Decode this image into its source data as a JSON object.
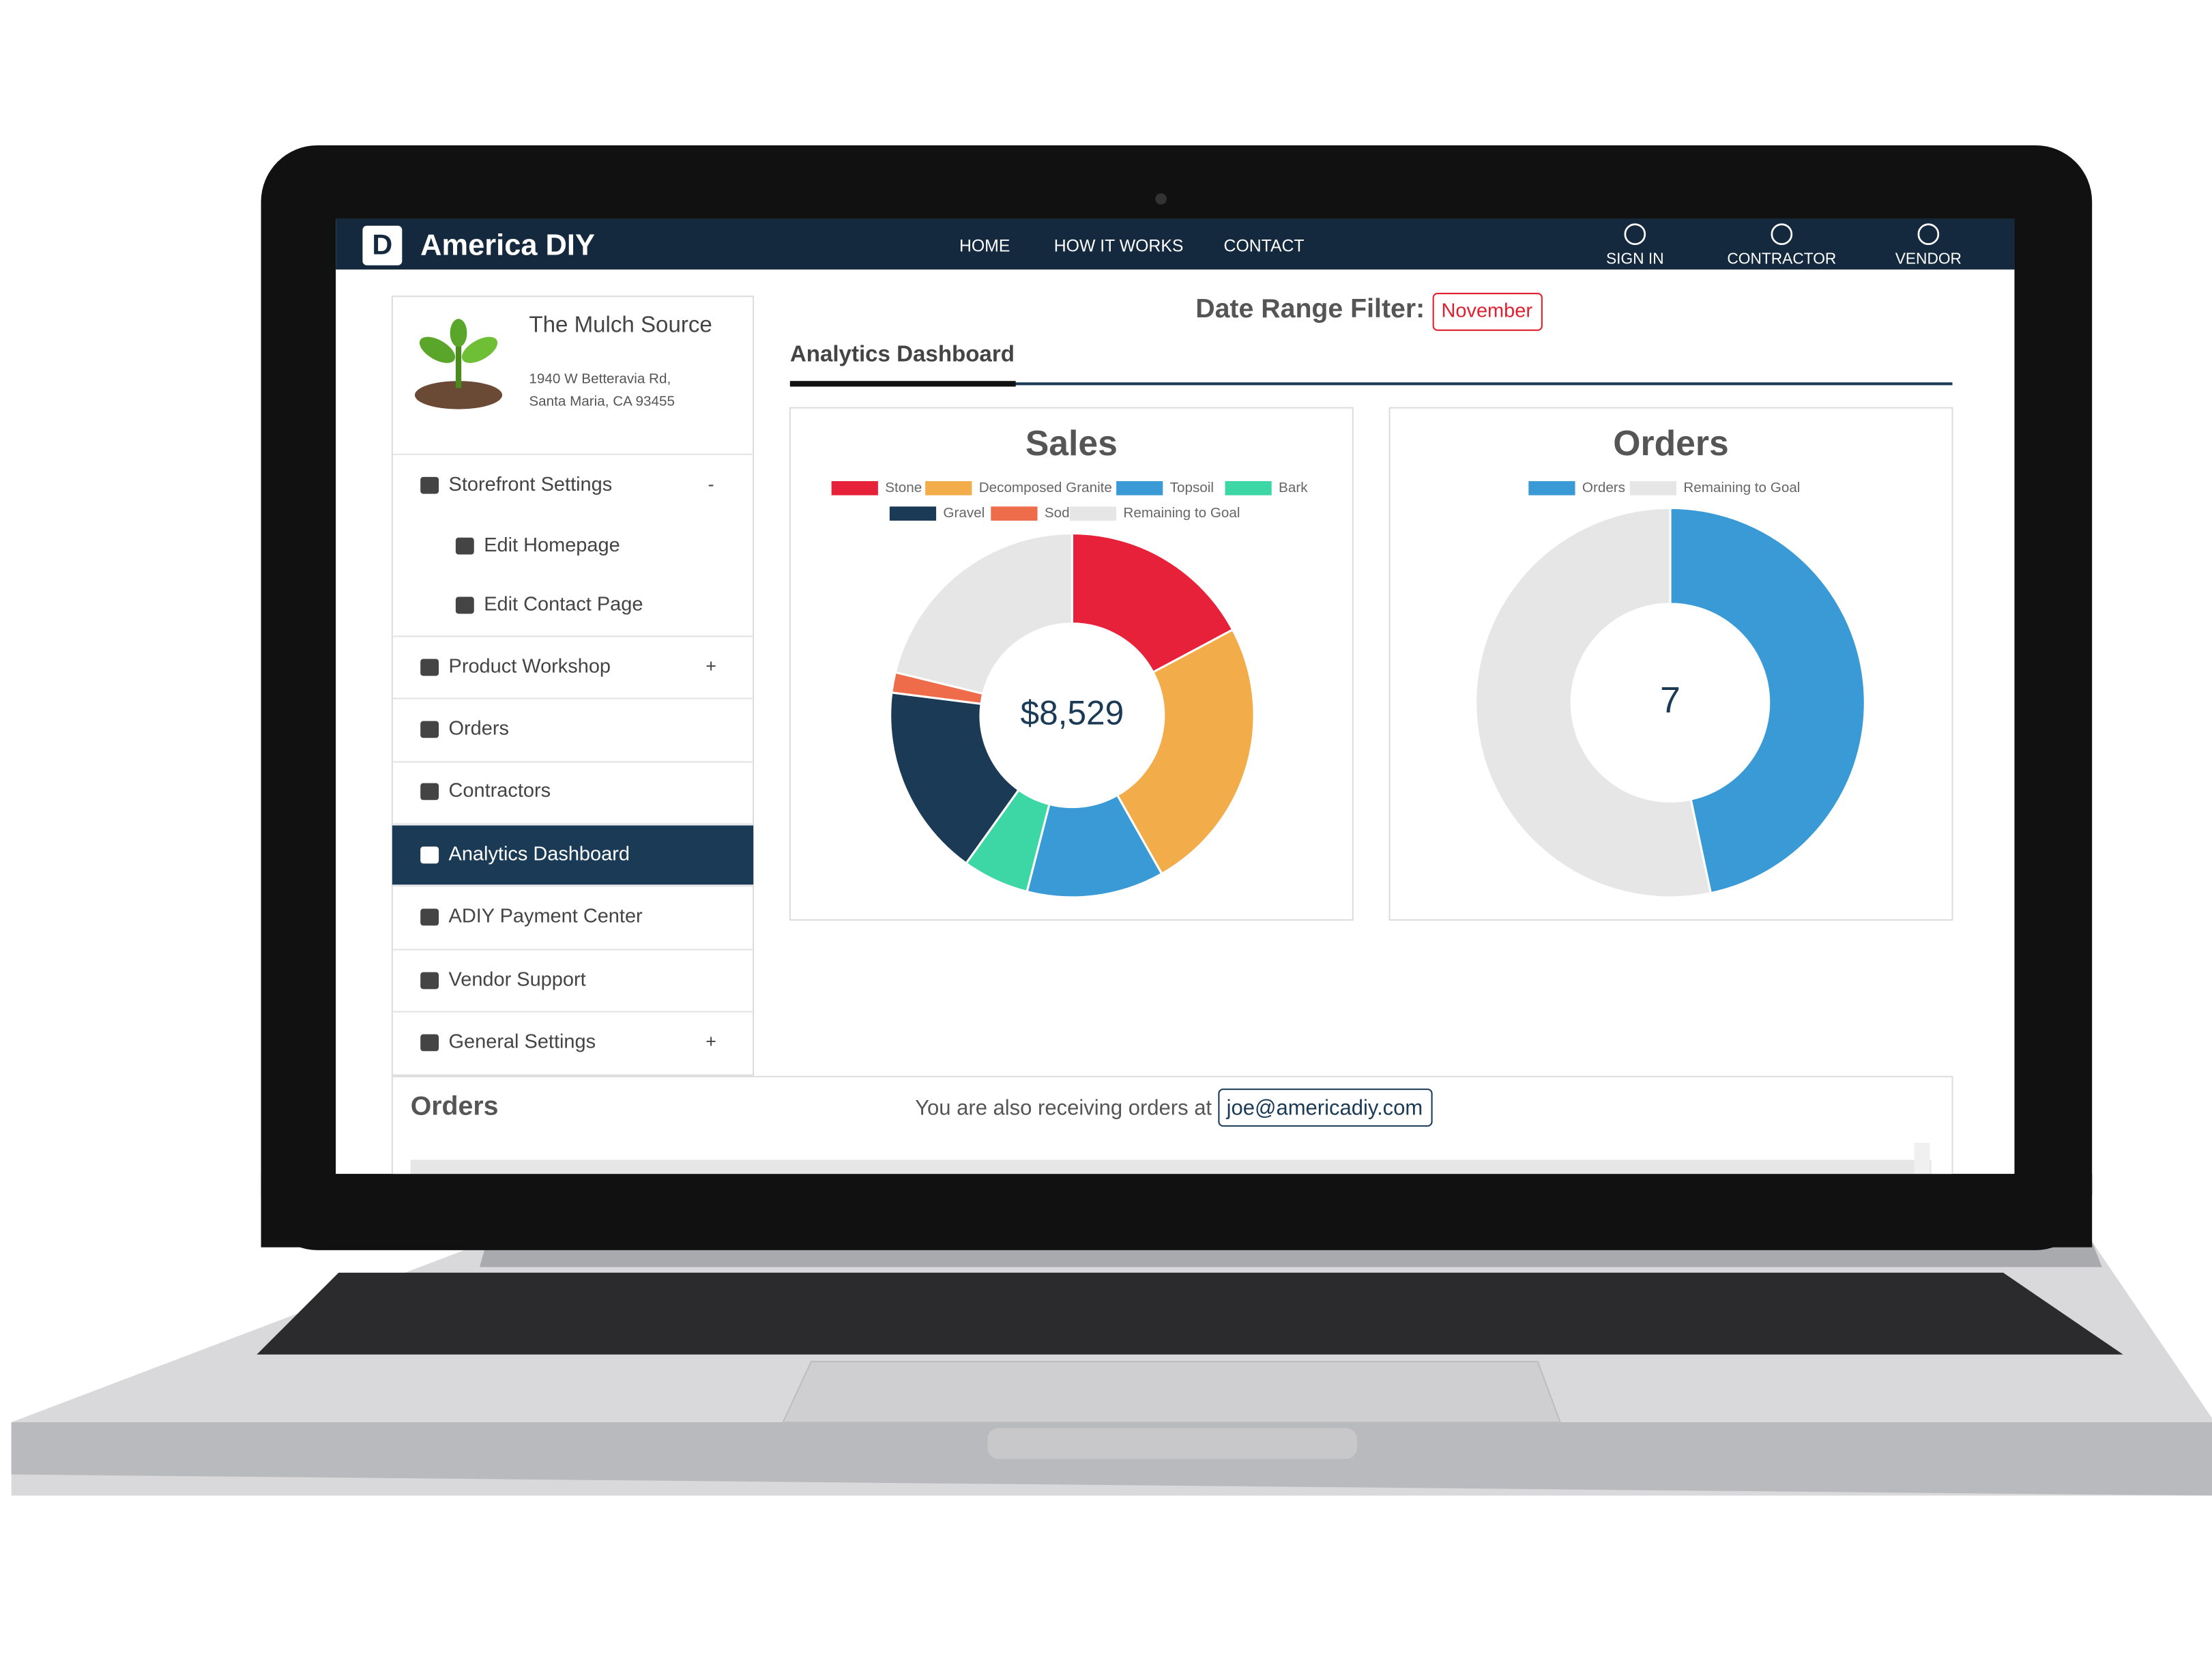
{
  "nav": {
    "brand": "America DIY",
    "links": [
      "HOME",
      "HOW IT WORKS",
      "CONTACT"
    ],
    "actions": [
      "SIGN IN",
      "CONTRACTOR",
      "VENDOR"
    ]
  },
  "store": {
    "name": "The Mulch Source",
    "address": [
      "1940 W Betteravia Rd,",
      "Santa Maria, CA 93455"
    ]
  },
  "sidebar": [
    {
      "label": "Storefront Settings",
      "toggle": "-"
    },
    {
      "label": "Edit Homepage"
    },
    {
      "label": "Edit Contact Page"
    },
    {
      "label": "Product Workshop",
      "toggle": "+"
    },
    {
      "label": "Orders"
    },
    {
      "label": "Contractors"
    },
    {
      "label": "Analytics Dashboard"
    },
    {
      "label": "ADIY Payment Center"
    },
    {
      "label": "Vendor Support"
    },
    {
      "label": "General Settings",
      "toggle": "+"
    }
  ],
  "filter": {
    "label": "Date Range Filter:",
    "value": "November"
  },
  "section_title": "Analytics Dashboard",
  "chart_data": [
    {
      "type": "donut",
      "title": "Sales",
      "center_label": "$8,529",
      "categories": [
        "Stone",
        "Decomposed Granite",
        "Topsoil",
        "Bark",
        "Gravel",
        "Sod",
        "Remaining to Goal"
      ],
      "values": [
        17.2,
        24.6,
        12.2,
        5.9,
        17.1,
        1.8,
        21.2
      ],
      "colors": [
        "#e8213a",
        "#f2ad4a",
        "#3a9ad6",
        "#3dd6a5",
        "#1b3a56",
        "#ee6c4a",
        "#e6e6e6"
      ]
    },
    {
      "type": "donut",
      "title": "Orders",
      "center_label": "7",
      "categories": [
        "Orders",
        "Remaining to Goal"
      ],
      "values": [
        7,
        8
      ],
      "colors": [
        "#3a9ad6",
        "#e6e6e6"
      ]
    }
  ],
  "orders_panel": {
    "title": "Orders",
    "notice": "You are also receiving orders at",
    "email": "joe@americadiy.com"
  }
}
